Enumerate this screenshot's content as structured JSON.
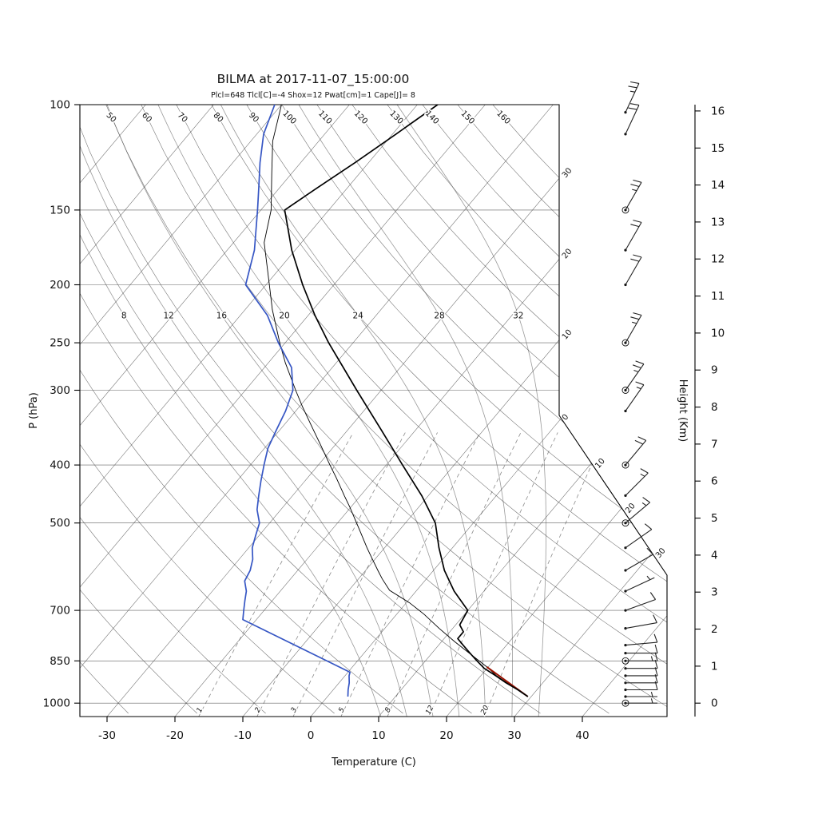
{
  "chart_data": {
    "type": "skewt",
    "title": "BILMA at 2017-11-07_15:00:00",
    "subtitle": "Plcl=648 Tlcl[C]=-4 Shox=12 Pwat[cm]=1 Cape[J]= 8",
    "station": "BILMA",
    "datetime": "2017-11-07_15:00:00",
    "parameters": {
      "Plcl": 648,
      "Tlcl_C": -4,
      "Shox": 12,
      "Pwat_cm": 1,
      "Cape_J": 8
    },
    "xlabel": "Temperature (C)",
    "ylabel_left": "P (hPa)",
    "ylabel_right": "Height (Km)",
    "axes": {
      "pressure_ticks": [
        100,
        150,
        200,
        250,
        300,
        400,
        500,
        700,
        850,
        1000
      ],
      "temperature_ticks": [
        -30,
        -20,
        -10,
        0,
        10,
        20,
        30,
        40
      ],
      "height_ticks_km": [
        0,
        1,
        2,
        3,
        4,
        5,
        6,
        7,
        8,
        9,
        10,
        11,
        12,
        13,
        14,
        15,
        16
      ],
      "pressure_range": [
        100,
        1053
      ],
      "grid": true
    },
    "grid_labels": {
      "dry_adiabats": [
        50,
        60,
        70,
        80,
        90,
        100,
        110,
        120,
        130,
        140,
        150,
        160
      ],
      "moist_adiabats": [
        8,
        12,
        16,
        20,
        24,
        28,
        32
      ],
      "mixing_ratio": [
        1,
        2,
        3,
        5,
        8,
        12,
        20
      ],
      "isotherm_edge": [
        {
          "label": "30",
          "t": -30
        },
        {
          "label": "20",
          "t": -20
        },
        {
          "label": "10",
          "t": -10
        },
        {
          "label": "0",
          "t": 0
        },
        {
          "label": "10",
          "t": 10
        },
        {
          "label": "20",
          "t": 20
        },
        {
          "label": "30",
          "t": 30
        }
      ]
    },
    "series": {
      "temperature": [
        [
          975,
          29.5
        ],
        [
          950,
          27.2
        ],
        [
          925,
          24.6
        ],
        [
          900,
          22.2
        ],
        [
          875,
          19.6
        ],
        [
          850,
          17.6
        ],
        [
          825,
          15.6
        ],
        [
          800,
          13.6
        ],
        [
          780,
          12.0
        ],
        [
          760,
          12.0
        ],
        [
          740,
          10.6
        ],
        [
          700,
          10.0
        ],
        [
          650,
          5.6
        ],
        [
          600,
          1.6
        ],
        [
          550,
          -2.0
        ],
        [
          500,
          -5.6
        ],
        [
          450,
          -11.0
        ],
        [
          400,
          -17.6
        ],
        [
          350,
          -25.0
        ],
        [
          300,
          -33.6
        ],
        [
          250,
          -43.6
        ],
        [
          225,
          -49.0
        ],
        [
          200,
          -54.6
        ],
        [
          175,
          -60.5
        ],
        [
          150,
          -66.5
        ],
        [
          138,
          -64.5
        ],
        [
          125,
          -62.0
        ],
        [
          112,
          -59.5
        ],
        [
          100,
          -57.0
        ]
      ],
      "dewpoint": [
        [
          975,
          3.0
        ],
        [
          950,
          2.2
        ],
        [
          925,
          1.5
        ],
        [
          900,
          0.6
        ],
        [
          888,
          0.3
        ],
        [
          725,
          -22.0
        ],
        [
          700,
          -23.0
        ],
        [
          675,
          -24.0
        ],
        [
          650,
          -25.0
        ],
        [
          625,
          -26.5
        ],
        [
          600,
          -27.0
        ],
        [
          575,
          -28.0
        ],
        [
          550,
          -29.5
        ],
        [
          525,
          -30.5
        ],
        [
          500,
          -31.5
        ],
        [
          475,
          -33.5
        ],
        [
          450,
          -35.0
        ],
        [
          425,
          -36.5
        ],
        [
          400,
          -38.0
        ],
        [
          375,
          -39.5
        ],
        [
          350,
          -40.5
        ],
        [
          325,
          -41.5
        ],
        [
          300,
          -43.0
        ],
        [
          275,
          -46.0
        ],
        [
          250,
          -51.0
        ],
        [
          225,
          -56.0
        ],
        [
          200,
          -63.0
        ],
        [
          175,
          -66.0
        ],
        [
          150,
          -70.5
        ],
        [
          138,
          -73.0
        ],
        [
          125,
          -76.0
        ],
        [
          112,
          -79.0
        ],
        [
          100,
          -81.0
        ]
      ],
      "parcel": [
        [
          975,
          29.5
        ],
        [
          940,
          26.2
        ],
        [
          900,
          22.3
        ],
        [
          870,
          19.8
        ],
        [
          830,
          16.0
        ],
        [
          790,
          12.0
        ],
        [
          750,
          8.0
        ],
        [
          710,
          4.0
        ],
        [
          680,
          0.5
        ],
        [
          648,
          -4.0
        ],
        [
          620,
          -6.5
        ],
        [
          600,
          -8.2
        ],
        [
          570,
          -10.8
        ],
        [
          550,
          -12.6
        ],
        [
          520,
          -15.3
        ],
        [
          500,
          -17.2
        ],
        [
          470,
          -20.2
        ],
        [
          450,
          -22.4
        ],
        [
          420,
          -25.8
        ],
        [
          400,
          -28.3
        ],
        [
          370,
          -32.2
        ],
        [
          350,
          -35.0
        ],
        [
          320,
          -39.5
        ],
        [
          300,
          -42.6
        ],
        [
          270,
          -47.5
        ],
        [
          250,
          -50.8
        ],
        [
          220,
          -56.0
        ],
        [
          200,
          -59.5
        ],
        [
          170,
          -65.5
        ],
        [
          150,
          -68.5
        ],
        [
          130,
          -73.0
        ],
        [
          115,
          -76.8
        ],
        [
          100,
          -80.0
        ]
      ],
      "parcel_dry_leg": [
        [
          975,
          29.5
        ],
        [
          870,
          19.8
        ]
      ]
    },
    "wind_barbs": [
      {
        "p": 103,
        "kt": 25,
        "dir": 25
      },
      {
        "p": 112,
        "kt": 20,
        "dir": 25
      },
      {
        "p": 150,
        "kt": 25,
        "dir": 30
      },
      {
        "p": 175,
        "kt": 20,
        "dir": 30
      },
      {
        "p": 200,
        "kt": 20,
        "dir": 30
      },
      {
        "p": 250,
        "kt": 25,
        "dir": 30
      },
      {
        "p": 300,
        "kt": 25,
        "dir": 35
      },
      {
        "p": 325,
        "kt": 15,
        "dir": 35
      },
      {
        "p": 400,
        "kt": 20,
        "dir": 40
      },
      {
        "p": 450,
        "kt": 15,
        "dir": 45
      },
      {
        "p": 500,
        "kt": 15,
        "dir": 50
      },
      {
        "p": 550,
        "kt": 10,
        "dir": 55
      },
      {
        "p": 600,
        "kt": 10,
        "dir": 60
      },
      {
        "p": 650,
        "kt": 5,
        "dir": 65
      },
      {
        "p": 700,
        "kt": 10,
        "dir": 70
      },
      {
        "p": 750,
        "kt": 10,
        "dir": 80
      },
      {
        "p": 800,
        "kt": 10,
        "dir": 85
      },
      {
        "p": 825,
        "kt": 10,
        "dir": 90
      },
      {
        "p": 850,
        "kt": 15,
        "dir": 90
      },
      {
        "p": 875,
        "kt": 10,
        "dir": 90
      },
      {
        "p": 900,
        "kt": 10,
        "dir": 90
      },
      {
        "p": 925,
        "kt": 10,
        "dir": 90
      },
      {
        "p": 950,
        "kt": 10,
        "dir": 90
      },
      {
        "p": 975,
        "kt": 5,
        "dir": 90
      },
      {
        "p": 1000,
        "kt": 5,
        "dir": 90
      }
    ],
    "station_circle_levels": [
      150,
      250,
      300,
      400,
      500,
      850,
      1000
    ],
    "colors": {
      "temperature": "#000000",
      "dewpoint": "#3656c4",
      "parcel": "#000000",
      "parcel_dry_leg": "#991100",
      "subtitle": "#cc3300",
      "grid": "#3a3a3a",
      "moist_adiabat": "#9a9a9a",
      "mixing_ratio": "#8a8a8a"
    }
  }
}
